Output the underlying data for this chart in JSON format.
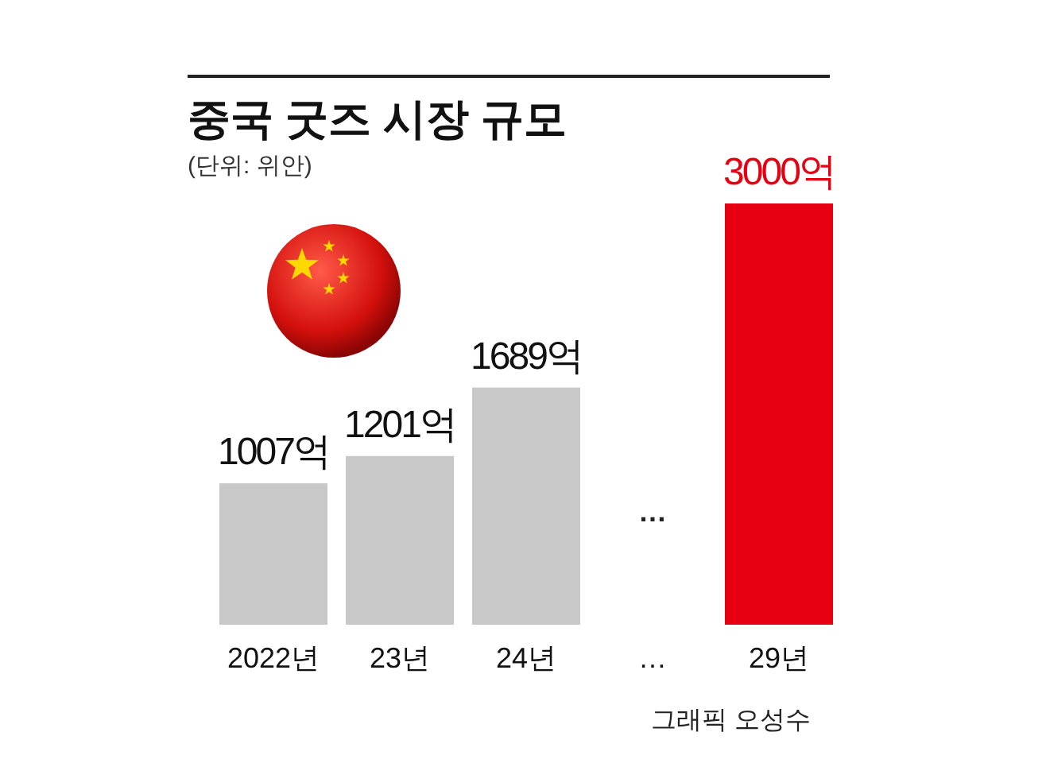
{
  "chart_data": {
    "type": "bar",
    "title": "중국 굿즈 시장 규모",
    "subtitle": "(단위: 위안)",
    "categories": [
      "2022년",
      "23년",
      "24년",
      "…",
      "29년"
    ],
    "values": [
      1007,
      1201,
      1689,
      null,
      3000
    ],
    "colors": [
      "#c8c8c8",
      "#c8c8c8",
      "#c8c8c8",
      "#c8c8c8",
      "#e60012"
    ],
    "value_labels": [
      "1007억",
      "1201억",
      "1689억",
      null,
      "3000억"
    ],
    "annotations": [
      "…",
      "그래픽 오성수"
    ]
  }
}
